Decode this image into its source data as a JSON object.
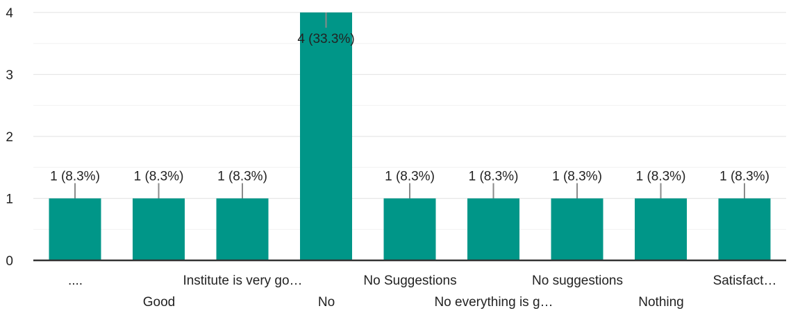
{
  "chart_data": {
    "type": "bar",
    "categories": [
      "....",
      "Good",
      "Institute is very go…",
      "No",
      "No Suggestions",
      "No everything is g…",
      "No suggestions",
      "Nothing",
      "Satisfact…"
    ],
    "values": [
      1,
      1,
      1,
      4,
      1,
      1,
      1,
      1,
      1
    ],
    "data_labels": [
      "1 (8.3%)",
      "1 (8.3%)",
      "1 (8.3%)",
      "4 (33.3%)",
      "1 (8.3%)",
      "1 (8.3%)",
      "1 (8.3%)",
      "1 (8.3%)",
      "1 (8.3%)"
    ],
    "title": "",
    "xlabel": "",
    "ylabel": "",
    "ylim": [
      0,
      4
    ],
    "yticks": [
      "0",
      "1",
      "2",
      "3",
      "4"
    ],
    "grid": true,
    "legend": "none",
    "bar_color": "#009688",
    "leader_color": "#8a8a8a",
    "grid_color": "#e6e6e6",
    "axis_color": "#333333"
  }
}
